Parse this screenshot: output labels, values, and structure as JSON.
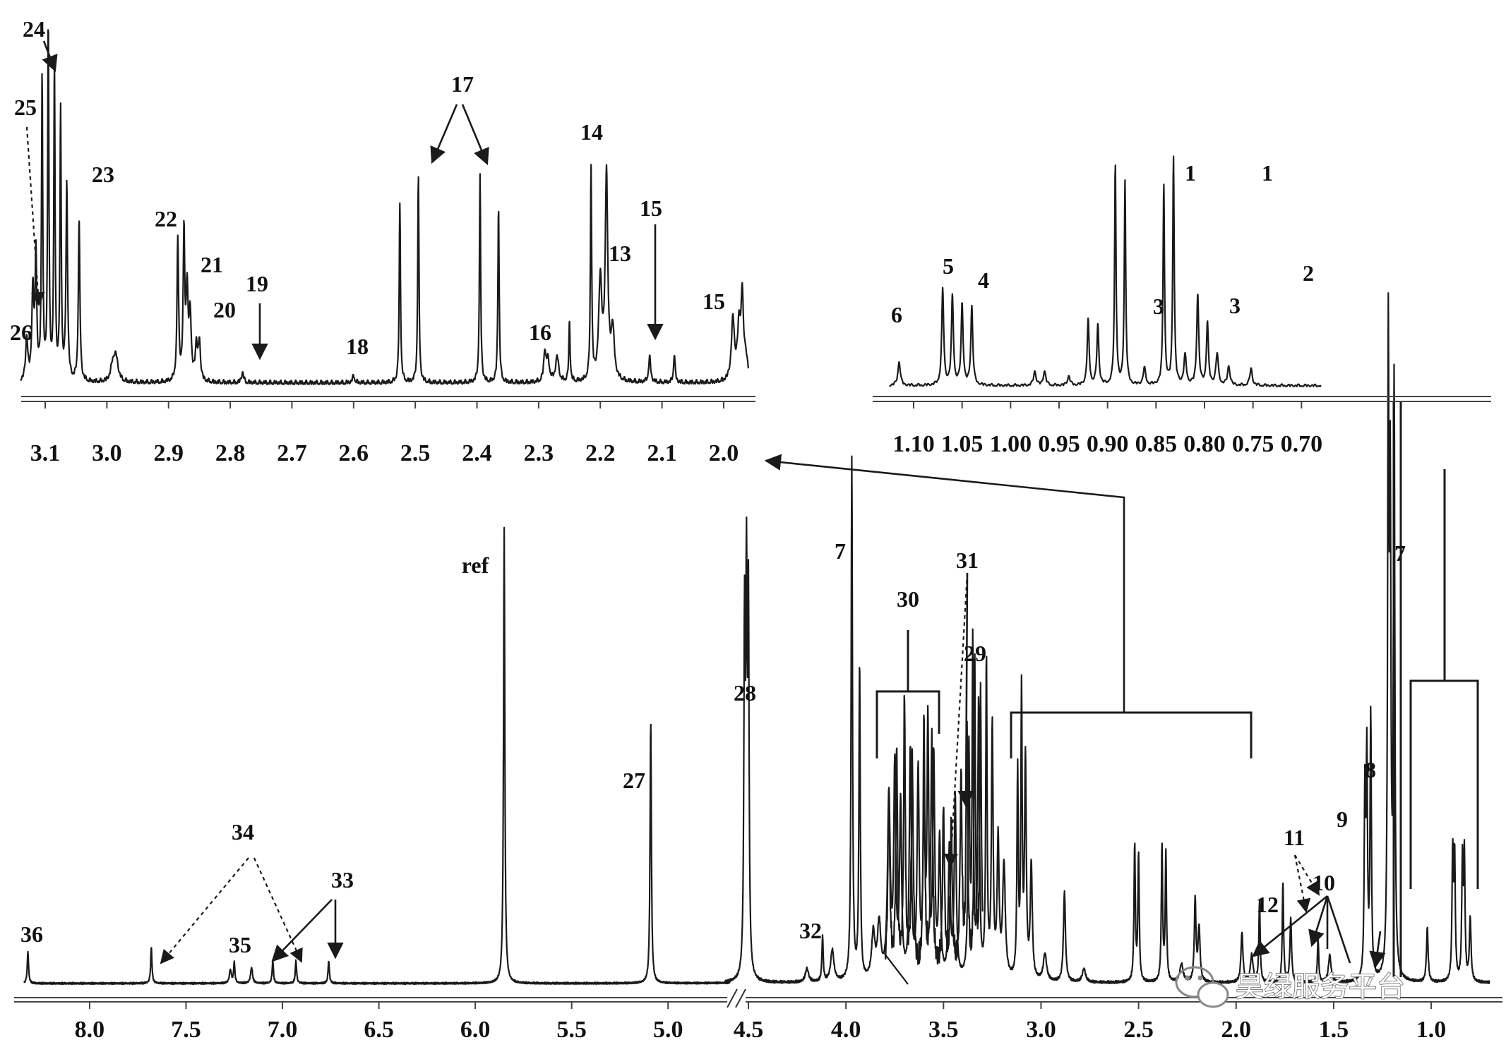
{
  "chart_data": [
    {
      "type": "line",
      "panel": "main",
      "xlabel": "",
      "ylabel": "",
      "xlim": [
        8.35,
        0.7
      ],
      "x_reversed": true,
      "axis_break_at": 4.65,
      "xticks": [
        "8.0",
        "7.5",
        "7.0",
        "6.5",
        "6.0",
        "5.5",
        "5.0",
        "4.5",
        "4.0",
        "3.5",
        "3.0",
        "2.5",
        "2.0",
        "1.5",
        "1.0"
      ],
      "peaks": [
        {
          "label": "36",
          "ppm": 8.32,
          "height": 0.07
        },
        {
          "label": "34",
          "ppm": 7.68,
          "height": 0.08
        },
        {
          "label": "35",
          "ppm": 7.25,
          "height": 0.045
        },
        {
          "label": "33",
          "ppm": 7.05,
          "height": 0.05
        },
        {
          "label": "33",
          "ppm": 6.93,
          "height": 0.05
        },
        {
          "label": "33",
          "ppm": 6.76,
          "height": 0.05
        },
        {
          "label": "ref",
          "ppm": 5.85,
          "height": 1.0
        },
        {
          "label": "27",
          "ppm": 5.09,
          "height": 0.58
        },
        {
          "label": "28",
          "ppm": 4.51,
          "height": 0.81
        },
        {
          "label": "32",
          "ppm": 4.12,
          "height": 0.1
        },
        {
          "label": "7",
          "ppm": 3.97,
          "height": 1.15
        },
        {
          "label": "30",
          "ppm": 3.7,
          "height": 0.62
        },
        {
          "label": "31",
          "ppm": 3.5,
          "height": 0.55
        },
        {
          "label": "29",
          "ppm": 3.4,
          "height": 0.8
        },
        {
          "label": "12",
          "ppm": 1.88,
          "height": 0.18
        },
        {
          "label": "11",
          "ppm": 1.76,
          "height": 0.22
        },
        {
          "label": "10",
          "ppm": 1.58,
          "height": 0.1
        },
        {
          "label": "9",
          "ppm": 1.33,
          "height": 0.48
        },
        {
          "label": "8",
          "ppm": 1.31,
          "height": 0.58
        },
        {
          "label": "7",
          "ppm": 1.21,
          "height": 1.0
        }
      ]
    },
    {
      "type": "line",
      "panel": "inset-left",
      "xlim": [
        3.15,
        1.95
      ],
      "x_reversed": true,
      "xticks": [
        "3.1",
        "3.0",
        "2.9",
        "2.8",
        "2.7",
        "2.6",
        "2.5",
        "2.4",
        "2.3",
        "2.2",
        "2.1",
        "2.0"
      ],
      "peaks": [
        {
          "label": "26",
          "ppm": 3.13,
          "height": 0.12
        },
        {
          "label": "25",
          "ppm": 3.12,
          "height": 0.25
        },
        {
          "label": "24",
          "ppm": 3.1,
          "height": 1.0
        },
        {
          "label": "23",
          "ppm": 3.05,
          "height": 0.5
        },
        {
          "label": "22",
          "ppm": 2.88,
          "height": 0.43
        },
        {
          "label": "21",
          "ppm": 2.87,
          "height": 0.24
        },
        {
          "label": "20",
          "ppm": 2.85,
          "height": 0.11
        },
        {
          "label": "19",
          "ppm": 2.78,
          "height": 0.03
        },
        {
          "label": "18",
          "ppm": 2.6,
          "height": 0.02
        },
        {
          "label": "17",
          "ppm": 2.51,
          "height": 0.58
        },
        {
          "label": "17",
          "ppm": 2.38,
          "height": 0.6
        },
        {
          "label": "16",
          "ppm": 2.29,
          "height": 0.08
        },
        {
          "label": "14",
          "ppm": 2.21,
          "height": 0.63
        },
        {
          "label": "15",
          "ppm": 2.19,
          "height": 0.32
        },
        {
          "label": "13",
          "ppm": 2.12,
          "height": 0.07
        },
        {
          "label": "15",
          "ppm": 1.97,
          "height": 0.21
        }
      ]
    },
    {
      "type": "line",
      "panel": "inset-right",
      "xlim": [
        1.13,
        0.68
      ],
      "x_reversed": true,
      "xticks": [
        "1.10",
        "1.05",
        "1.00",
        "0.95",
        "0.90",
        "0.85",
        "0.80",
        "0.75",
        "0.70"
      ],
      "peaks": [
        {
          "label": "6",
          "ppm": 1.11,
          "height": 0.12
        },
        {
          "label": "5",
          "ppm": 1.065,
          "height": 0.42
        },
        {
          "label": "4",
          "ppm": 1.045,
          "height": 0.35
        },
        {
          "label": "3",
          "ppm": 0.92,
          "height": 0.3
        },
        {
          "label": "3",
          "ppm": 0.86,
          "height": 0.12
        },
        {
          "label": "1",
          "ppm": 0.89,
          "height": 0.95
        },
        {
          "label": "1",
          "ppm": 0.835,
          "height": 0.97
        },
        {
          "label": "2",
          "ppm": 0.805,
          "height": 0.42
        }
      ]
    }
  ],
  "watermark": {
    "icon": "wechat-icon",
    "text": "昊绿服务平台"
  }
}
